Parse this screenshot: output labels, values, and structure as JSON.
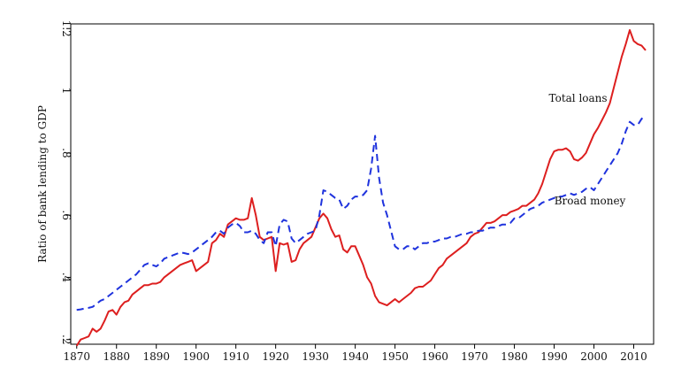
{
  "chart_data": {
    "type": "line",
    "title": "",
    "ylabel": "Ratio of bank lending to GDP",
    "xlabel": "",
    "xlim": [
      1868.5,
      2015
    ],
    "ylim": [
      0.185,
      1.215
    ],
    "x_ticks": [
      1870,
      1880,
      1890,
      1900,
      1910,
      1920,
      1930,
      1940,
      1950,
      1960,
      1970,
      1980,
      1990,
      2000,
      2010
    ],
    "x_tick_labels": [
      "1870",
      "1880",
      "1890",
      "1900",
      "1910",
      "1920",
      "1930",
      "1940",
      "1950",
      "1960",
      "1970",
      "1980",
      "1990",
      "2000",
      "2010"
    ],
    "y_ticks": [
      0.2,
      0.4,
      0.6,
      0.8,
      1.0,
      1.2
    ],
    "y_tick_labels": [
      ".2",
      ".4",
      ".6",
      ".8",
      "1",
      "1.2"
    ],
    "grid": false,
    "legend": "none (inline annotations)",
    "annotations": [
      {
        "text": "Total loans",
        "x": 1996,
        "y": 0.965
      },
      {
        "text": "Broad money",
        "x": 1999,
        "y": 0.635
      }
    ],
    "series": [
      {
        "name": "Total loans",
        "color": "#dd1f1f",
        "line_style": "solid",
        "x": [
          1870,
          1871,
          1872,
          1873,
          1874,
          1875,
          1876,
          1877,
          1878,
          1879,
          1880,
          1881,
          1882,
          1883,
          1884,
          1885,
          1886,
          1887,
          1888,
          1889,
          1890,
          1891,
          1892,
          1893,
          1894,
          1895,
          1896,
          1897,
          1898,
          1899,
          1900,
          1901,
          1902,
          1903,
          1904,
          1905,
          1906,
          1907,
          1908,
          1909,
          1910,
          1911,
          1912,
          1913,
          1914,
          1915,
          1916,
          1917,
          1918,
          1919,
          1920,
          1921,
          1922,
          1923,
          1924,
          1925,
          1926,
          1927,
          1928,
          1929,
          1930,
          1931,
          1932,
          1933,
          1934,
          1935,
          1936,
          1937,
          1938,
          1939,
          1940,
          1941,
          1942,
          1943,
          1944,
          1945,
          1946,
          1947,
          1948,
          1949,
          1950,
          1951,
          1952,
          1953,
          1954,
          1955,
          1956,
          1957,
          1958,
          1959,
          1960,
          1961,
          1962,
          1963,
          1964,
          1965,
          1966,
          1967,
          1968,
          1969,
          1970,
          1971,
          1972,
          1973,
          1974,
          1975,
          1976,
          1977,
          1978,
          1979,
          1980,
          1981,
          1982,
          1983,
          1984,
          1985,
          1986,
          1987,
          1988,
          1989,
          1990,
          1991,
          1992,
          1993,
          1994,
          1995,
          1996,
          1997,
          1998,
          1999,
          2000,
          2001,
          2002,
          2003,
          2004,
          2005,
          2006,
          2007,
          2008,
          2009,
          2010,
          2011,
          2012,
          2013
        ],
        "y": [
          0.18,
          0.2,
          0.205,
          0.21,
          0.235,
          0.225,
          0.235,
          0.26,
          0.29,
          0.295,
          0.28,
          0.305,
          0.32,
          0.325,
          0.345,
          0.355,
          0.365,
          0.375,
          0.375,
          0.38,
          0.38,
          0.385,
          0.4,
          0.41,
          0.42,
          0.43,
          0.44,
          0.445,
          0.45,
          0.455,
          0.42,
          0.43,
          0.44,
          0.45,
          0.51,
          0.52,
          0.54,
          0.53,
          0.57,
          0.58,
          0.59,
          0.585,
          0.585,
          0.59,
          0.655,
          0.6,
          0.53,
          0.52,
          0.525,
          0.53,
          0.42,
          0.51,
          0.505,
          0.51,
          0.45,
          0.455,
          0.49,
          0.51,
          0.52,
          0.53,
          0.56,
          0.59,
          0.605,
          0.59,
          0.555,
          0.53,
          0.535,
          0.49,
          0.48,
          0.5,
          0.5,
          0.47,
          0.44,
          0.4,
          0.38,
          0.34,
          0.32,
          0.315,
          0.31,
          0.32,
          0.33,
          0.32,
          0.33,
          0.34,
          0.35,
          0.365,
          0.37,
          0.37,
          0.38,
          0.39,
          0.41,
          0.43,
          0.44,
          0.46,
          0.47,
          0.48,
          0.49,
          0.5,
          0.51,
          0.53,
          0.54,
          0.545,
          0.56,
          0.575,
          0.575,
          0.58,
          0.59,
          0.6,
          0.6,
          0.61,
          0.615,
          0.62,
          0.63,
          0.63,
          0.64,
          0.65,
          0.67,
          0.7,
          0.74,
          0.78,
          0.805,
          0.81,
          0.81,
          0.815,
          0.805,
          0.78,
          0.775,
          0.785,
          0.8,
          0.83,
          0.86,
          0.88,
          0.905,
          0.93,
          0.96,
          1.01,
          1.06,
          1.11,
          1.15,
          1.195,
          1.16,
          1.15,
          1.145,
          1.13
        ]
      },
      {
        "name": "Broad money",
        "color": "#1f33dd",
        "line_style": "dashed",
        "x": [
          1870,
          1871,
          1872,
          1873,
          1874,
          1875,
          1876,
          1877,
          1878,
          1879,
          1880,
          1881,
          1882,
          1883,
          1884,
          1885,
          1886,
          1887,
          1888,
          1889,
          1890,
          1891,
          1892,
          1893,
          1894,
          1895,
          1896,
          1897,
          1898,
          1899,
          1900,
          1901,
          1902,
          1903,
          1904,
          1905,
          1906,
          1907,
          1908,
          1909,
          1910,
          1911,
          1912,
          1913,
          1914,
          1915,
          1916,
          1917,
          1918,
          1919,
          1920,
          1921,
          1922,
          1923,
          1924,
          1925,
          1926,
          1927,
          1928,
          1929,
          1930,
          1931,
          1932,
          1933,
          1934,
          1935,
          1936,
          1937,
          1938,
          1939,
          1940,
          1941,
          1942,
          1943,
          1944,
          1945,
          1946,
          1947,
          1948,
          1949,
          1950,
          1951,
          1952,
          1953,
          1954,
          1955,
          1956,
          1957,
          1958,
          1959,
          1960,
          1961,
          1962,
          1963,
          1964,
          1965,
          1966,
          1967,
          1968,
          1969,
          1970,
          1971,
          1972,
          1973,
          1974,
          1975,
          1976,
          1977,
          1978,
          1979,
          1980,
          1981,
          1982,
          1983,
          1984,
          1985,
          1986,
          1987,
          1988,
          1989,
          1990,
          1991,
          1992,
          1993,
          1994,
          1995,
          1996,
          1997,
          1998,
          1999,
          2000,
          2001,
          2002,
          2003,
          2004,
          2005,
          2006,
          2007,
          2008,
          2009,
          2010,
          2011,
          2012,
          2013
        ],
        "y": [
          0.295,
          0.297,
          0.3,
          0.302,
          0.305,
          0.315,
          0.325,
          0.33,
          0.34,
          0.35,
          0.36,
          0.37,
          0.38,
          0.39,
          0.4,
          0.41,
          0.425,
          0.44,
          0.445,
          0.44,
          0.435,
          0.445,
          0.46,
          0.465,
          0.47,
          0.475,
          0.48,
          0.478,
          0.475,
          0.48,
          0.49,
          0.5,
          0.51,
          0.52,
          0.53,
          0.545,
          0.55,
          0.54,
          0.56,
          0.57,
          0.575,
          0.565,
          0.545,
          0.545,
          0.55,
          0.54,
          0.52,
          0.51,
          0.545,
          0.545,
          0.5,
          0.57,
          0.585,
          0.58,
          0.525,
          0.51,
          0.52,
          0.53,
          0.54,
          0.545,
          0.55,
          0.6,
          0.68,
          0.675,
          0.665,
          0.655,
          0.65,
          0.62,
          0.63,
          0.65,
          0.66,
          0.66,
          0.665,
          0.68,
          0.75,
          0.855,
          0.72,
          0.64,
          0.6,
          0.55,
          0.5,
          0.49,
          0.49,
          0.5,
          0.5,
          0.49,
          0.5,
          0.51,
          0.51,
          0.515,
          0.515,
          0.52,
          0.525,
          0.525,
          0.53,
          0.53,
          0.535,
          0.54,
          0.54,
          0.545,
          0.545,
          0.55,
          0.55,
          0.555,
          0.56,
          0.56,
          0.565,
          0.57,
          0.57,
          0.575,
          0.59,
          0.59,
          0.6,
          0.61,
          0.62,
          0.625,
          0.63,
          0.64,
          0.645,
          0.65,
          0.655,
          0.66,
          0.66,
          0.665,
          0.67,
          0.665,
          0.67,
          0.675,
          0.685,
          0.69,
          0.68,
          0.7,
          0.72,
          0.74,
          0.76,
          0.78,
          0.8,
          0.83,
          0.87,
          0.9,
          0.89,
          0.89,
          0.91,
          0.92
        ]
      }
    ]
  }
}
